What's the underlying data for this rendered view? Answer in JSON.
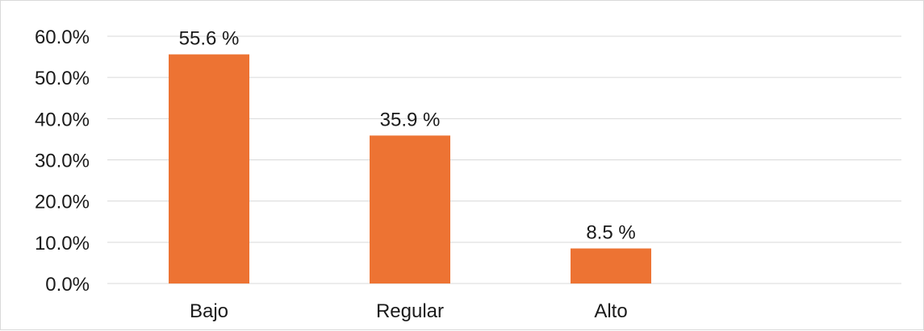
{
  "chart_data": {
    "type": "bar",
    "categories": [
      "Bajo",
      "Regular",
      "Alto"
    ],
    "values": [
      55.6,
      35.9,
      8.5
    ],
    "data_labels": [
      "55.6 %",
      "35.9 %",
      "8.5 %"
    ],
    "y_ticks": [
      0,
      10,
      20,
      30,
      40,
      50,
      60
    ],
    "y_tick_labels": [
      "0.0%",
      "10.0%",
      "20.0%",
      "30.0%",
      "40.0%",
      "50.0%",
      "60.0%"
    ],
    "ylim": [
      0,
      60
    ],
    "grid": true,
    "bar_color": "#ED7333",
    "grid_color": "#d9d9d9",
    "xlabel": "",
    "ylabel": ""
  }
}
